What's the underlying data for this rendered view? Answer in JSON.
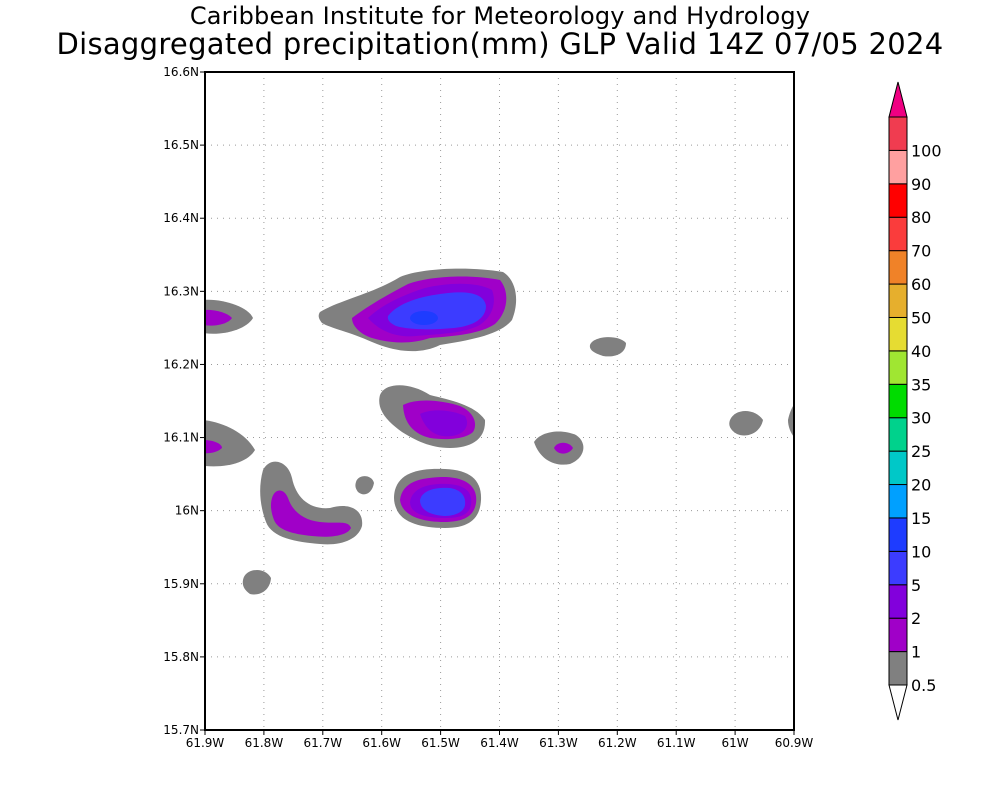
{
  "titles": {
    "line1": "Caribbean Institute for Meteorology and Hydrology",
    "line2": "Disaggregated precipitation(mm) GLP Valid 14Z 07/05 2024"
  },
  "map": {
    "lon_range": [
      -61.9,
      -60.9
    ],
    "lat_range": [
      15.7,
      16.6
    ],
    "y_ticks": [
      {
        "lat": 16.6,
        "label": "16.6N"
      },
      {
        "lat": 16.5,
        "label": "16.5N"
      },
      {
        "lat": 16.4,
        "label": "16.4N"
      },
      {
        "lat": 16.3,
        "label": "16.3N"
      },
      {
        "lat": 16.2,
        "label": "16.2N"
      },
      {
        "lat": 16.1,
        "label": "16.1N"
      },
      {
        "lat": 16.0,
        "label": "16N"
      },
      {
        "lat": 15.9,
        "label": "15.9N"
      },
      {
        "lat": 15.8,
        "label": "15.8N"
      },
      {
        "lat": 15.7,
        "label": "15.7N"
      }
    ],
    "x_ticks": [
      {
        "lon": -61.9,
        "label": "61.9W"
      },
      {
        "lon": -61.8,
        "label": "61.8W"
      },
      {
        "lon": -61.7,
        "label": "61.7W"
      },
      {
        "lon": -61.6,
        "label": "61.6W"
      },
      {
        "lon": -61.5,
        "label": "61.5W"
      },
      {
        "lon": -61.4,
        "label": "61.4W"
      },
      {
        "lon": -61.3,
        "label": "61.3W"
      },
      {
        "lon": -61.2,
        "label": "61.2W"
      },
      {
        "lon": -61.1,
        "label": "61.1W"
      },
      {
        "lon": -61.0,
        "label": "61W"
      },
      {
        "lon": -60.9,
        "label": "60.9W"
      }
    ],
    "grid": true
  },
  "colorbar": {
    "levels": [
      "0.5",
      "1",
      "2",
      "5",
      "10",
      "15",
      "20",
      "25",
      "30",
      "35",
      "40",
      "50",
      "60",
      "70",
      "80",
      "90",
      "100"
    ],
    "colors": [
      "#808080",
      "#a000c8",
      "#8200dc",
      "#3c3cff",
      "#1e3cff",
      "#00a0ff",
      "#00c8c8",
      "#00d28c",
      "#00dc00",
      "#a0e632",
      "#e6dc32",
      "#e6af2d",
      "#f08228",
      "#fa3c3c",
      "#ff0000",
      "#ffa0a0",
      "#f03c50",
      "#f00082"
    ],
    "under_color": "#ffffff",
    "over_color": "#f00082"
  }
}
